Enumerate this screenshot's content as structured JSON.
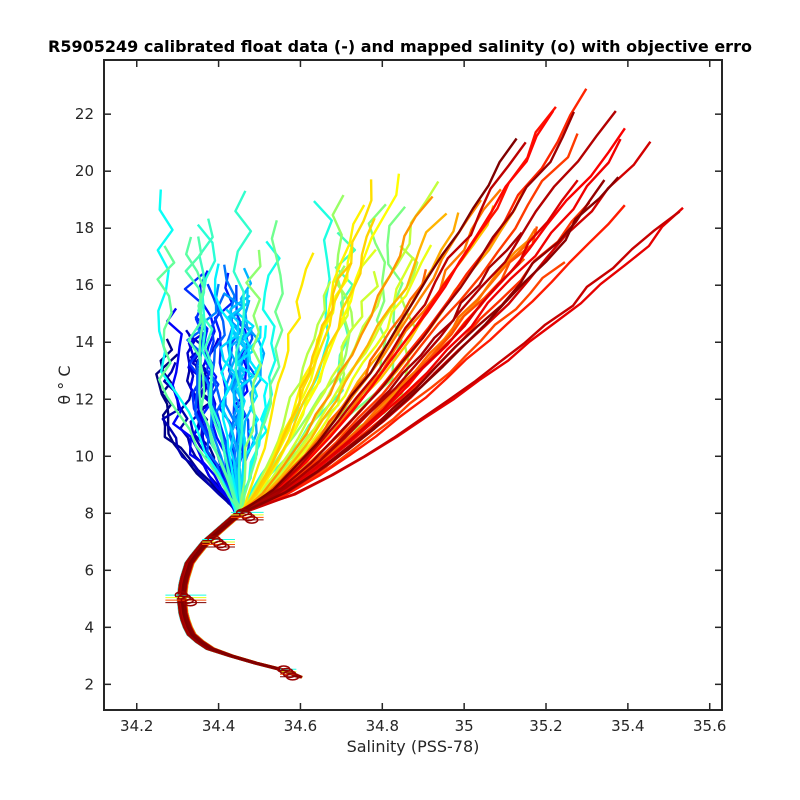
{
  "chart_data": {
    "type": "line",
    "title": "R5905249 calibrated float data (-) and mapped salinity (o) with objective erro",
    "xlabel": "Salinity (PSS-78)",
    "ylabel": "θ ° C",
    "xlim": [
      34.12,
      35.63
    ],
    "ylim": [
      1.1,
      23.9
    ],
    "x_ticks": [
      34.2,
      34.4,
      34.6,
      34.8,
      35,
      35.2,
      35.4,
      35.6
    ],
    "x_tick_labels": [
      "34.2",
      "34.4",
      "34.6",
      "34.8",
      "35",
      "35.2",
      "35.4",
      "35.6"
    ],
    "y_ticks": [
      2,
      4,
      6,
      8,
      10,
      12,
      14,
      16,
      18,
      20,
      22
    ],
    "y_tick_labels": [
      "2",
      "4",
      "6",
      "8",
      "10",
      "12",
      "14",
      "16",
      "18",
      "20",
      "22"
    ],
    "grid": false,
    "legend": "none",
    "colormap": "jet",
    "colormap_stops": [
      "#00007f",
      "#0000ff",
      "#007fff",
      "#00ffff",
      "#7fff7f",
      "#ffff00",
      "#ff7f00",
      "#ff0000",
      "#7f0000"
    ],
    "profile_count": 100,
    "deep_curve": [
      [
        34.45,
        8.0
      ],
      [
        34.37,
        7.0
      ],
      [
        34.33,
        6.3
      ],
      [
        34.315,
        5.6
      ],
      [
        34.31,
        5.0
      ],
      [
        34.315,
        4.4
      ],
      [
        34.33,
        3.8
      ],
      [
        34.37,
        3.3
      ],
      [
        34.45,
        2.9
      ],
      [
        34.53,
        2.6
      ],
      [
        34.6,
        2.35
      ]
    ],
    "mapped_salinity_markers": [
      {
        "theta": 7.9,
        "salinity": 34.47,
        "error": 0.04
      },
      {
        "theta": 6.95,
        "salinity": 34.4,
        "error": 0.04
      },
      {
        "theta": 5.0,
        "salinity": 34.32,
        "error": 0.05
      },
      {
        "theta": 2.4,
        "salinity": 34.57,
        "error": 0.02
      }
    ],
    "profile_groups": [
      {
        "color_fraction": 0.0,
        "salinity_range": [
          34.27,
          34.38
        ],
        "top_theta": [
          12.5,
          15.2
        ]
      },
      {
        "color_fraction": 0.2,
        "salinity_range": [
          34.33,
          34.47
        ],
        "top_theta": [
          14.0,
          16.8
        ]
      },
      {
        "color_fraction": 0.35,
        "salinity_range": [
          34.4,
          34.52
        ],
        "top_theta": [
          14.5,
          16.8
        ]
      },
      {
        "color_fraction": 0.45,
        "salinity_range": [
          34.25,
          34.85
        ],
        "top_theta": [
          17.0,
          19.4
        ]
      },
      {
        "color_fraction": 0.6,
        "salinity_range": [
          34.6,
          34.95
        ],
        "top_theta": [
          16.0,
          20.0
        ]
      },
      {
        "color_fraction": 0.75,
        "salinity_range": [
          34.9,
          35.25
        ],
        "top_theta": [
          16.5,
          19.5
        ]
      },
      {
        "color_fraction": 0.88,
        "salinity_range": [
          35.15,
          35.55
        ],
        "top_theta": [
          18.0,
          22.9
        ]
      },
      {
        "color_fraction": 1.0,
        "salinity_range": [
          35.1,
          35.42
        ],
        "top_theta": [
          17.5,
          22.2
        ]
      }
    ]
  }
}
